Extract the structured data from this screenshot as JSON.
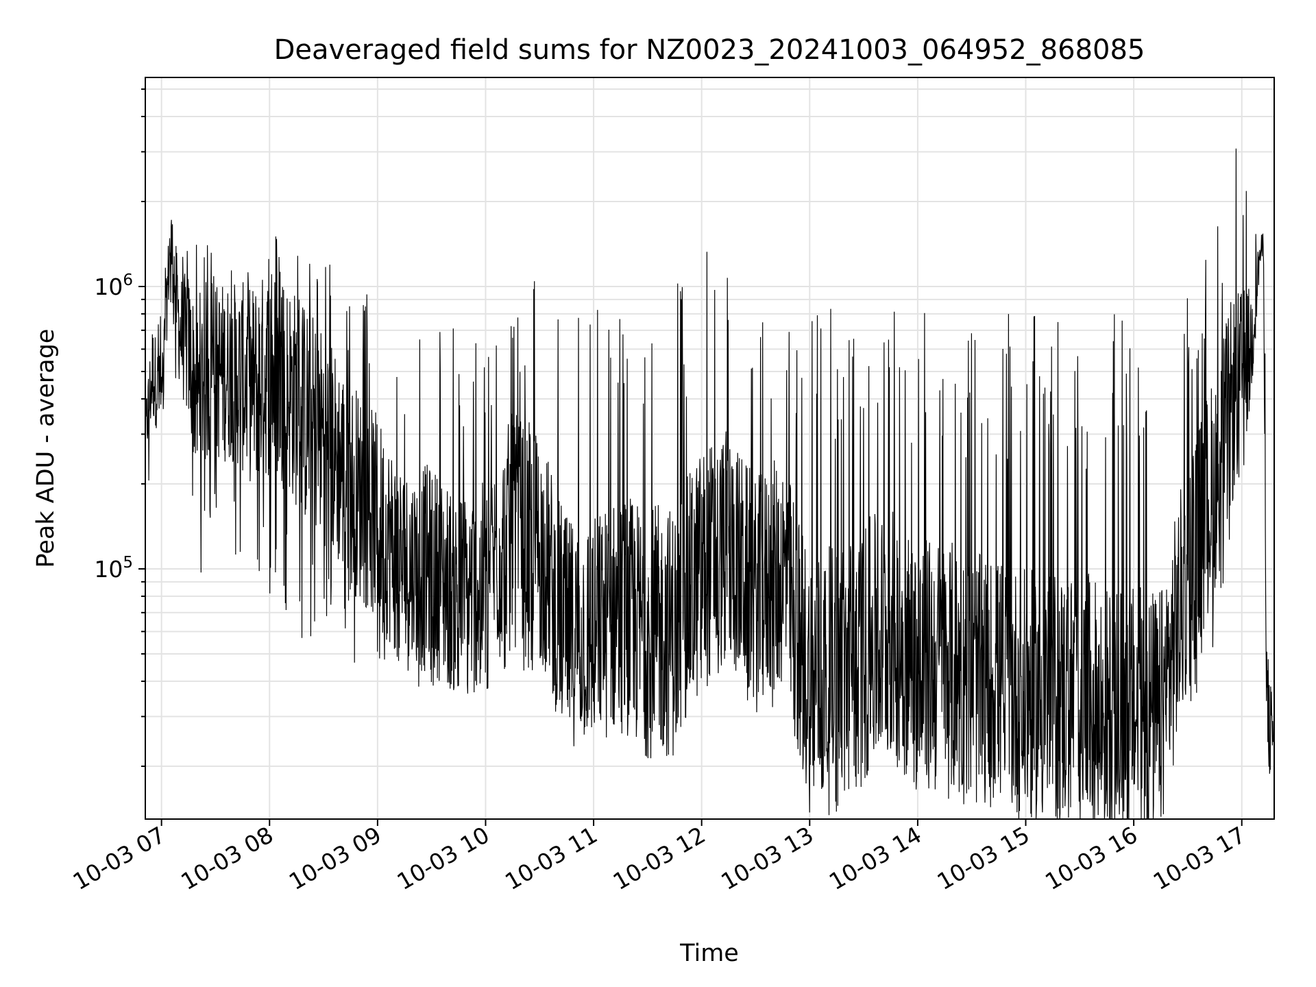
{
  "chart_data": {
    "type": "line",
    "title": "Deaveraged field sums for NZ0023_20241003_064952_868085",
    "xlabel": "Time",
    "ylabel": "Peak ADU - average",
    "yscale": "log",
    "ylim": [
      13000,
      5500000
    ],
    "xlim": [
      "2024-10-03 06:51",
      "2024-10-03 17:18"
    ],
    "grid": true,
    "line_color": "#000000",
    "x_ticks": [
      "10-03 07",
      "10-03 08",
      "10-03 09",
      "10-03 10",
      "10-03 11",
      "10-03 12",
      "10-03 13",
      "10-03 14",
      "10-03 15",
      "10-03 16",
      "10-03 17"
    ],
    "y_ticks": [
      {
        "base": "10",
        "exp": "6"
      },
      {
        "base": "10",
        "exp": "5"
      }
    ],
    "series": [
      {
        "x": [
          "2024-10-03 06:51",
          "2024-10-03 06:55",
          "2024-10-03 07:00",
          "2024-10-03 07:05",
          "2024-10-03 07:10",
          "2024-10-03 07:15",
          "2024-10-03 07:20",
          "2024-10-03 07:25",
          "2024-10-03 07:30",
          "2024-10-03 07:40",
          "2024-10-03 07:50",
          "2024-10-03 08:00",
          "2024-10-03 08:10",
          "2024-10-03 08:20",
          "2024-10-03 08:30",
          "2024-10-03 08:45",
          "2024-10-03 09:00",
          "2024-10-03 09:15",
          "2024-10-03 09:30",
          "2024-10-03 09:45",
          "2024-10-03 10:00",
          "2024-10-03 10:15",
          "2024-10-03 10:30",
          "2024-10-03 10:45",
          "2024-10-03 11:00",
          "2024-10-03 11:15",
          "2024-10-03 11:30",
          "2024-10-03 11:45",
          "2024-10-03 12:00",
          "2024-10-03 12:15",
          "2024-10-03 12:30",
          "2024-10-03 12:45",
          "2024-10-03 13:00",
          "2024-10-03 13:15",
          "2024-10-03 13:30",
          "2024-10-03 13:45",
          "2024-10-03 14:00",
          "2024-10-03 14:15",
          "2024-10-03 14:30",
          "2024-10-03 14:45",
          "2024-10-03 15:00",
          "2024-10-03 15:15",
          "2024-10-03 15:30",
          "2024-10-03 15:45",
          "2024-10-03 16:00",
          "2024-10-03 16:15",
          "2024-10-03 16:30",
          "2024-10-03 16:45",
          "2024-10-03 16:55",
          "2024-10-03 17:05",
          "2024-10-03 17:10",
          "2024-10-03 17:12",
          "2024-10-03 17:14",
          "2024-10-03 17:18"
        ],
        "y": [
          300000,
          500000,
          400000,
          1500000,
          700000,
          600000,
          400000,
          500000,
          500000,
          500000,
          450000,
          500000,
          450000,
          350000,
          300000,
          200000,
          150000,
          100000,
          100000,
          80000,
          90000,
          150000,
          120000,
          60000,
          60000,
          70000,
          60000,
          60000,
          100000,
          120000,
          80000,
          100000,
          40000,
          40000,
          50000,
          60000,
          45000,
          45000,
          40000,
          40000,
          35000,
          35000,
          35000,
          30000,
          30000,
          30000,
          100000,
          200000,
          400000,
          600000,
          1300000,
          1400000,
          30000,
          25000
        ],
        "upper": [
          500000,
          700000,
          900000,
          2500000,
          1600000,
          1500000,
          1400000,
          1500000,
          1500000,
          1500000,
          1600000,
          1600000,
          1500000,
          1400000,
          1300000,
          1100000,
          900000,
          800000,
          800000,
          700000,
          700000,
          1100000,
          1300000,
          900000,
          900000,
          1000000,
          1100000,
          1100000,
          1400000,
          1500000,
          1000000,
          1000000,
          900000,
          1000000,
          1000000,
          900000,
          900000,
          900000,
          800000,
          800000,
          800000,
          800000,
          800000,
          800000,
          800000,
          700000,
          1000000,
          1500000,
          3500000,
          2000000,
          1500000,
          1500000,
          200000,
          30000
        ],
        "lower": [
          200000,
          150000,
          300000,
          800000,
          300000,
          150000,
          100000,
          90000,
          100000,
          100000,
          80000,
          70000,
          60000,
          50000,
          50000,
          45000,
          40000,
          38000,
          35000,
          32000,
          35000,
          45000,
          40000,
          30000,
          28000,
          28000,
          25000,
          25000,
          35000,
          45000,
          30000,
          30000,
          18000,
          17000,
          19000,
          20000,
          19000,
          18000,
          18000,
          19000,
          18000,
          17000,
          17000,
          16000,
          16000,
          16000,
          30000,
          50000,
          150000,
          300000,
          900000,
          1000000,
          20000,
          18000
        ]
      }
    ]
  }
}
